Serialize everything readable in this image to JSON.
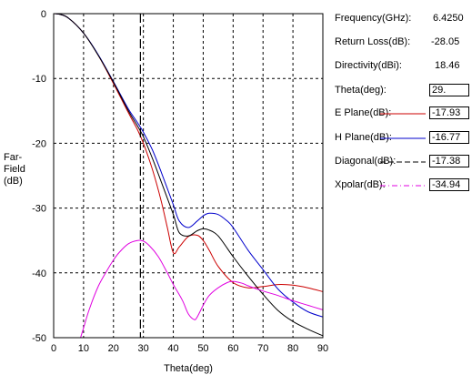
{
  "info": {
    "frequency_label": "Frequency(GHz):",
    "frequency_value": "6.4250",
    "return_loss_label": "Return Loss(dB):",
    "return_loss_value": "-28.05",
    "directivity_label": "Directivity(dBi):",
    "directivity_value": "18.46",
    "theta_label": "Theta(deg):",
    "theta_value": "29."
  },
  "legend": [
    {
      "label": "E Plane(dB):",
      "value": "-17.93",
      "color": "#cc0000",
      "dash": "solid"
    },
    {
      "label": "H Plane(dB):",
      "value": "-16.77",
      "color": "#0000cc",
      "dash": "solid"
    },
    {
      "label": "Diagonal(dB):",
      "value": "-17.38",
      "color": "#000000",
      "dash": "dashed"
    },
    {
      "label": "Xpolar(dB):",
      "value": "-34.94",
      "color": "#e000e0",
      "dash": "dashdot"
    }
  ],
  "chart_data": {
    "type": "line",
    "title": "",
    "xlabel": "Theta(deg)",
    "ylabel": "Far-Field (dB)",
    "ylabel_lines": [
      "Far-",
      "Field",
      "(dB)"
    ],
    "xlim": [
      0,
      90
    ],
    "ylim": [
      -50,
      0
    ],
    "xticks": [
      0,
      10,
      20,
      30,
      40,
      50,
      60,
      70,
      80,
      90
    ],
    "yticks": [
      0,
      -10,
      -20,
      -30,
      -40,
      -50
    ],
    "grid": true,
    "cursor_theta": 29,
    "series": [
      {
        "name": "E Plane",
        "color": "#cc0000",
        "x": [
          0,
          2,
          5,
          10,
          15,
          20,
          25,
          28,
          30,
          33,
          36,
          38,
          40,
          42,
          45,
          48,
          50,
          52,
          55,
          60,
          65,
          70,
          75,
          80,
          85,
          90
        ],
        "y": [
          0,
          -0.1,
          -0.7,
          -3,
          -6.5,
          -10.8,
          -15.3,
          -17.9,
          -20,
          -24,
          -29,
          -33,
          -36.9,
          -36,
          -34.4,
          -34.2,
          -35,
          -36.5,
          -39,
          -41.5,
          -42.3,
          -42.1,
          -41.8,
          -41.9,
          -42.3,
          -42.9
        ]
      },
      {
        "name": "H Plane",
        "color": "#0000cc",
        "x": [
          0,
          2,
          5,
          10,
          15,
          20,
          25,
          28,
          30,
          33,
          36,
          40,
          42,
          45,
          48,
          50,
          52,
          55,
          58,
          60,
          65,
          70,
          75,
          80,
          85,
          90
        ],
        "y": [
          0,
          -0.1,
          -0.7,
          -3,
          -6.4,
          -10.5,
          -14.7,
          -16.8,
          -18.3,
          -21,
          -24.5,
          -29.5,
          -32,
          -33,
          -32,
          -31.2,
          -30.8,
          -31,
          -32,
          -33,
          -36.5,
          -39.5,
          -42.5,
          -44.5,
          -46,
          -46.8
        ]
      },
      {
        "name": "Diagonal",
        "color": "#000000",
        "x": [
          0,
          2,
          5,
          10,
          15,
          20,
          25,
          28,
          30,
          33,
          36,
          40,
          42,
          45,
          48,
          50,
          52,
          55,
          60,
          65,
          70,
          75,
          80,
          85,
          90
        ],
        "y": [
          0,
          -0.1,
          -0.7,
          -3,
          -6.5,
          -10.6,
          -15,
          -17.3,
          -19,
          -22.3,
          -26,
          -31,
          -33.8,
          -34.3,
          -33.5,
          -33.2,
          -33.4,
          -34.3,
          -37.5,
          -40.5,
          -43.3,
          -45.8,
          -47.5,
          -48.7,
          -49.7
        ]
      },
      {
        "name": "Xpolar",
        "color": "#e000e0",
        "x": [
          9,
          10,
          12,
          15,
          18,
          20,
          22,
          25,
          28,
          30,
          32,
          35,
          38,
          40,
          43,
          45,
          47,
          48,
          50,
          52,
          55,
          58,
          60,
          63,
          65,
          70,
          75,
          80,
          85,
          90
        ],
        "y": [
          -50,
          -48.5,
          -45.5,
          -42,
          -39.5,
          -38,
          -36.8,
          -35.5,
          -35,
          -35.1,
          -35.8,
          -37.5,
          -40,
          -41.8,
          -44.2,
          -46.3,
          -47.2,
          -46.8,
          -45,
          -43.5,
          -42.3,
          -41.5,
          -41.3,
          -41.6,
          -42,
          -42.8,
          -43.5,
          -44.3,
          -45,
          -45.7
        ]
      }
    ]
  }
}
